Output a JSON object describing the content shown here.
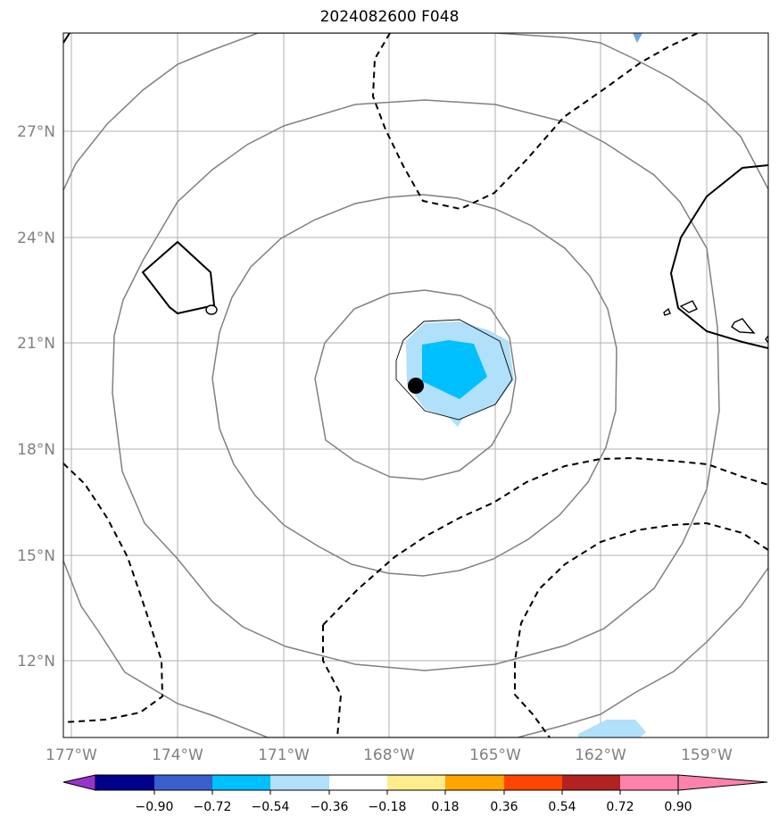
{
  "title": "2024082600 F048",
  "map": {
    "lon_ticks": [
      "177°W",
      "174°W",
      "171°W",
      "168°W",
      "165°W",
      "162°W",
      "159°W"
    ],
    "lat_ticks": [
      "27°N",
      "24°N",
      "21°N",
      "18°N",
      "15°N",
      "12°N"
    ],
    "gridline_color": "#b0b0b0",
    "isobar_color": "#808080",
    "storm_center_marker": "black-dot"
  },
  "colorbar": {
    "labels": [
      "−0.90",
      "−0.72",
      "−0.54",
      "−0.36",
      "−0.18",
      "0.18",
      "0.36",
      "0.54",
      "0.72",
      "0.90"
    ],
    "colors": [
      "#9932cc",
      "#00008b",
      "#3a5fcd",
      "#00bfff",
      "#b0e0fa",
      "#ffffff",
      "#ffec8b",
      "#ffa500",
      "#ff4500",
      "#b22222",
      "#ff82ab"
    ]
  }
}
